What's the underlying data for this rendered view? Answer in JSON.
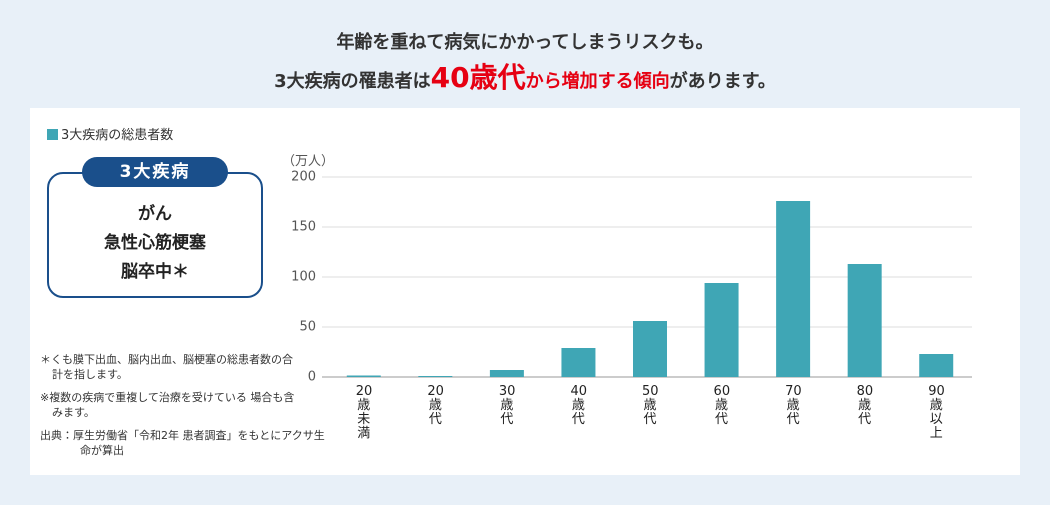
{
  "header": {
    "line1": "年齢を重ねて病気にかかってしまうリスクも。",
    "line2": [
      "3大疾病の罹患者は",
      "40歳代",
      "から増加する傾向",
      "があります。"
    ]
  },
  "disease_box": {
    "tag": "3大疾病",
    "items": [
      "がん",
      "急性心筋梗塞",
      "脳卒中＊"
    ]
  },
  "notes": [
    "＊くも膜下出血、脳内出血、脳梗塞の総患者数の合計を指します。",
    "※複数の疾病で重複して治療を受けている 場合も含みます。",
    "出典：厚生労働省「令和2年 患者調査」をもとにアクサ生命が算出"
  ],
  "chart_data": {
    "type": "bar",
    "y_label": "（万人）",
    "categories": [
      "20歳未満",
      "20歳代",
      "30歳代",
      "40歳代",
      "50歳代",
      "60歳代",
      "70歳代",
      "80歳代",
      "90歳以上"
    ],
    "series": [
      {
        "name": "3大疾病の総患者数",
        "color": "#3fa6b5",
        "values": [
          1.5,
          1,
          7,
          29,
          56,
          94,
          176,
          113,
          23
        ]
      }
    ],
    "ylim": [
      0,
      200
    ],
    "yticks": [
      0,
      50,
      100,
      150,
      200
    ],
    "grid": true
  }
}
